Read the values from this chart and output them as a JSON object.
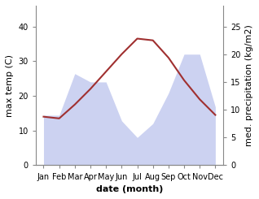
{
  "months": [
    "Jan",
    "Feb",
    "Mar",
    "Apr",
    "May",
    "Jun",
    "Jul",
    "Aug",
    "Sep",
    "Oct",
    "Nov",
    "Dec"
  ],
  "max_temp": [
    14.0,
    13.5,
    17.5,
    22.0,
    27.0,
    32.0,
    36.5,
    36.0,
    31.0,
    24.5,
    19.0,
    14.5
  ],
  "precipitation": [
    9.0,
    9.0,
    16.5,
    15.0,
    15.0,
    8.0,
    5.0,
    7.5,
    13.0,
    20.0,
    20.0,
    10.5
  ],
  "temp_ylim": [
    0,
    46
  ],
  "precip_ylim": [
    0,
    28.75
  ],
  "temp_yticks": [
    0,
    10,
    20,
    30,
    40
  ],
  "precip_yticks": [
    0,
    5,
    10,
    15,
    20,
    25
  ],
  "fill_color": "#aab4e8",
  "fill_alpha": 0.5,
  "line_color": "#a03030",
  "line_width": 1.5,
  "xlabel": "date (month)",
  "ylabel_left": "max temp (C)",
  "ylabel_right": "med. precipitation (kg/m2)",
  "bg_color": "#ffffff",
  "title_fontsize": 8,
  "label_fontsize": 8,
  "tick_fontsize": 7
}
